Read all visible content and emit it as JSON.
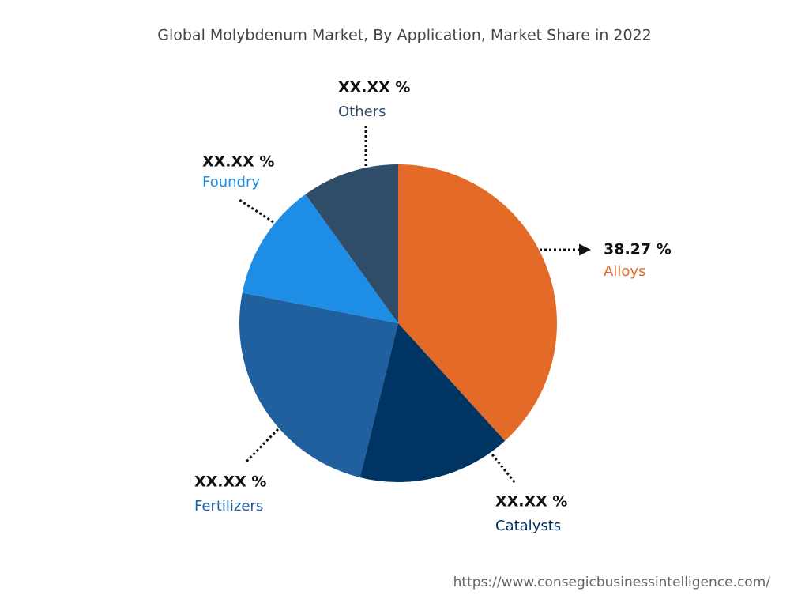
{
  "chart_data": {
    "type": "pie",
    "title": "Global Molybdenum Market, By Application, Market Share in 2022",
    "categories": [
      "Alloys",
      "Catalysts",
      "Fertilizers",
      "Foundry",
      "Others"
    ],
    "values": [
      38.27,
      15.6,
      24.2,
      12.0,
      9.93
    ],
    "value_labels": [
      "38.27 %",
      "XX.XX %",
      "XX.XX %",
      "XX.XX %",
      "XX.XX %"
    ],
    "colors": [
      "#e36a27",
      "#003463",
      "#21609f",
      "#1e8de6",
      "#2f4d68"
    ],
    "source": "https://www.consegicbusinessintelligence.com/"
  }
}
